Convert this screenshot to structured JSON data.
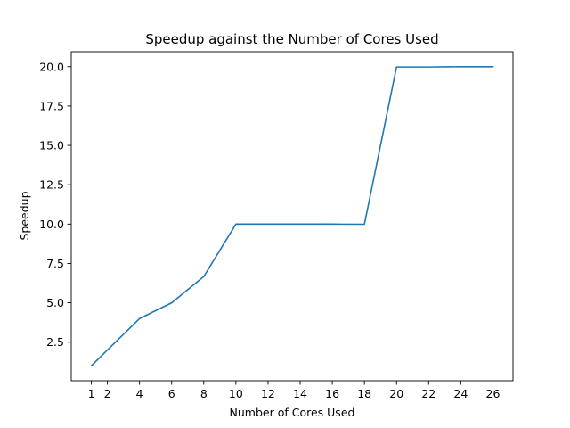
{
  "chart_data": {
    "type": "line",
    "title": "Speedup against the Number of Cores Used",
    "xlabel": "Number of Cores Used",
    "ylabel": "Speedup",
    "xlim": [
      -0.25,
      27.25
    ],
    "ylim": [
      0.05,
      20.95
    ],
    "xticks": [
      1,
      2,
      4,
      6,
      8,
      10,
      12,
      14,
      16,
      18,
      20,
      22,
      24,
      26
    ],
    "xtick_labels": [
      "1",
      "2",
      "4",
      "6",
      "8",
      "10",
      "12",
      "14",
      "16",
      "18",
      "20",
      "22",
      "24",
      "26"
    ],
    "yticks": [
      2.5,
      5.0,
      7.5,
      10.0,
      12.5,
      15.0,
      17.5,
      20.0
    ],
    "ytick_labels": [
      "2.5",
      "5.0",
      "7.5",
      "10.0",
      "12.5",
      "15.0",
      "17.5",
      "20.0"
    ],
    "grid": false,
    "series": [
      {
        "color": "#1f77b4",
        "x": [
          1,
          2,
          4,
          6,
          8,
          10,
          12,
          14,
          16,
          18,
          20,
          22,
          24,
          26
        ],
        "y": [
          1.0,
          2.0,
          4.0,
          5.0,
          6.67,
          10.0,
          10.0,
          10.0,
          10.0,
          9.99,
          19.98,
          19.98,
          20.0,
          20.0
        ]
      }
    ]
  }
}
